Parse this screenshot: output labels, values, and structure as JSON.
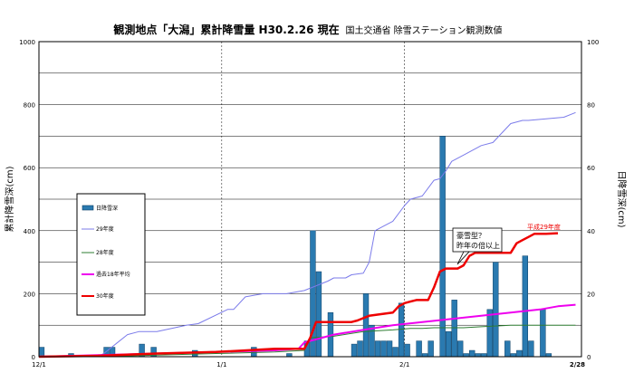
{
  "chart_data": {
    "type": "bar+line",
    "title": "観測地点「大潟」累計降雪量 H30.2.26  現在",
    "subtitle": "国土交通省  除雪ステーション観測数値",
    "ylabel_left": "累計降雪深(cm)",
    "ylabel_right": "日降雪深(cm)",
    "ylim_left": [
      0,
      1000
    ],
    "ylim_right": [
      0,
      100
    ],
    "yticks_left": [
      "0",
      "200",
      "400",
      "600",
      "800",
      "1000"
    ],
    "yticks_right": [
      "0",
      "20",
      "40",
      "60",
      "80",
      "100"
    ],
    "xticks": [
      {
        "label": "12/1",
        "day": 0
      },
      {
        "label": "1/1",
        "day": 31
      },
      {
        "label": "2/1",
        "day": 62
      },
      {
        "label": "2/28",
        "day": 89
      }
    ],
    "x_range_days": [
      0,
      92
    ],
    "grid": true,
    "legend": [
      "日降雪深",
      "29年度",
      "28年度",
      "過去18年平均",
      "30年度"
    ],
    "colors": {
      "daily": "#2a7ab0",
      "daily_stroke": "#0b3f66",
      "y29": "#7b7bea",
      "y28": "#2e7d32",
      "avg18": "#ee00ee",
      "y30": "#ee0000"
    },
    "annotation_box": [
      "豪雪型？",
      "昨年の倍以上"
    ],
    "annotation_red": "平成29年度",
    "daily_snowfall": {
      "days": [
        0,
        5,
        11,
        12,
        17,
        19,
        26,
        36,
        42,
        45,
        46,
        47,
        49,
        53,
        54,
        55,
        56,
        57,
        58,
        59,
        60,
        61,
        62,
        64,
        65,
        66,
        68,
        69,
        70,
        71,
        72,
        73,
        74,
        75,
        76,
        77,
        79,
        80,
        81,
        82,
        83,
        85,
        86
      ],
      "values": [
        3,
        1,
        3,
        3,
        4,
        3,
        2,
        3,
        1,
        5,
        40,
        27,
        14,
        4,
        5,
        20,
        10,
        5,
        5,
        5,
        3,
        17,
        4,
        5,
        1,
        5,
        70,
        8,
        18,
        5,
        1,
        2,
        1,
        1,
        15,
        30,
        5,
        1,
        2,
        32,
        5,
        15,
        1
      ]
    },
    "series": [
      {
        "name": "29年度",
        "x": [
          0,
          5,
          10,
          11,
          15,
          17,
          20,
          25,
          27,
          32,
          33,
          35,
          38,
          42,
          45,
          49,
          50,
          52,
          53,
          55,
          56,
          57,
          58,
          60,
          62,
          63,
          65,
          67,
          68,
          69,
          70,
          72,
          74,
          75,
          77,
          78,
          80,
          82,
          83,
          86,
          89,
          91
        ],
        "y": [
          0,
          0,
          0,
          10,
          70,
          80,
          80,
          100,
          105,
          150,
          150,
          190,
          200,
          200,
          210,
          240,
          250,
          250,
          260,
          265,
          300,
          400,
          410,
          430,
          480,
          500,
          510,
          560,
          565,
          590,
          620,
          640,
          660,
          670,
          680,
          700,
          740,
          750,
          750,
          755,
          760,
          775
        ]
      },
      {
        "name": "28年度",
        "x": [
          0,
          10,
          20,
          30,
          40,
          45,
          46,
          50,
          55,
          60,
          63,
          65,
          67,
          68,
          70,
          72,
          75,
          80,
          85,
          91
        ],
        "y": [
          0,
          0,
          5,
          10,
          15,
          20,
          60,
          65,
          80,
          85,
          90,
          90,
          92,
          92,
          92,
          92,
          95,
          100,
          100,
          100
        ]
      },
      {
        "name": "過去18年平均",
        "x": [
          0,
          10,
          20,
          30,
          40,
          44,
          45,
          50,
          55,
          60,
          65,
          70,
          75,
          80,
          85,
          88,
          91
        ],
        "y": [
          0,
          5,
          10,
          15,
          20,
          25,
          45,
          70,
          85,
          100,
          110,
          120,
          130,
          140,
          150,
          160,
          165
        ]
      },
      {
        "name": "30年度",
        "x": [
          0,
          10,
          20,
          30,
          40,
          45,
          46,
          47,
          50,
          53,
          54,
          56,
          58,
          60,
          61,
          62,
          63,
          64,
          65,
          66,
          67,
          68,
          69,
          70,
          71,
          72,
          73,
          74,
          75,
          76,
          77,
          78,
          79,
          80,
          81,
          82,
          83,
          84,
          85,
          86,
          88
        ],
        "y": [
          0,
          3,
          10,
          15,
          25,
          25,
          60,
          110,
          110,
          110,
          115,
          130,
          135,
          140,
          160,
          170,
          175,
          180,
          180,
          180,
          220,
          270,
          280,
          280,
          280,
          290,
          320,
          330,
          330,
          330,
          330,
          330,
          330,
          330,
          360,
          370,
          380,
          390,
          390,
          390,
          392
        ]
      }
    ]
  }
}
